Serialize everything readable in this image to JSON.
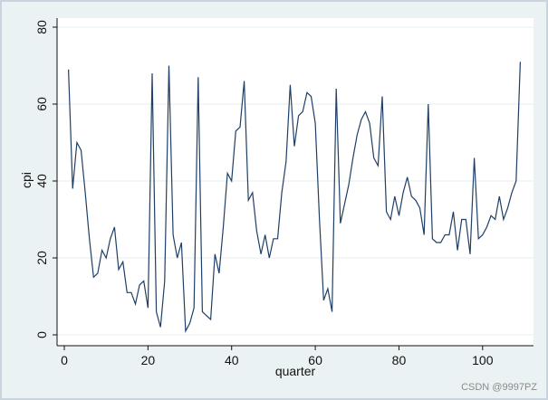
{
  "chart_data": {
    "type": "line",
    "xlabel": "quarter",
    "ylabel": "cpi",
    "xlim": [
      0,
      110
    ],
    "ylim": [
      0,
      80
    ],
    "x_ticks": [
      0,
      20,
      40,
      60,
      80,
      100
    ],
    "y_ticks": [
      0,
      20,
      40,
      60,
      80
    ],
    "grid": "horizontal",
    "line_color": "#1f3f66",
    "series": [
      {
        "x": [
          1,
          2,
          3,
          4,
          5,
          6,
          7,
          8,
          9,
          10,
          11,
          12,
          13,
          14,
          15,
          16,
          17,
          18,
          19,
          20,
          21,
          22,
          23,
          24,
          25,
          26,
          27,
          28,
          29,
          30,
          31,
          32,
          33,
          34,
          35,
          36,
          37,
          38,
          39,
          40,
          41,
          42,
          43,
          44,
          45,
          46,
          47,
          48,
          49,
          50,
          51,
          52,
          53,
          54,
          55,
          56,
          57,
          58,
          59,
          60,
          61,
          62,
          63,
          64,
          65,
          66,
          67,
          68,
          69,
          70,
          71,
          72,
          73,
          74,
          75,
          76,
          77,
          78,
          79,
          80,
          81,
          82,
          83,
          84,
          85,
          86,
          87,
          88,
          89,
          90,
          91,
          92,
          93,
          94,
          95,
          96,
          97,
          98,
          99,
          100,
          101,
          102,
          103,
          104,
          105,
          106,
          107,
          108,
          109
        ],
        "values": [
          69,
          38,
          50,
          48,
          37,
          25,
          15,
          16,
          22,
          20,
          25,
          28,
          17,
          19,
          11,
          11,
          8,
          13,
          14,
          7,
          68,
          6,
          2,
          14,
          70,
          26,
          20,
          24,
          1,
          3,
          7,
          67,
          6,
          5,
          4,
          21,
          16,
          28,
          42,
          40,
          53,
          54,
          66,
          35,
          37,
          27,
          21,
          26,
          20,
          25,
          25,
          37,
          45,
          65,
          49,
          57,
          58,
          63,
          62,
          55,
          30,
          9,
          12,
          6,
          64,
          29,
          34,
          39,
          46,
          52,
          56,
          58,
          55,
          46,
          44,
          62,
          32,
          30,
          36,
          31,
          37,
          41,
          36,
          35,
          33,
          26,
          60,
          25,
          24,
          24,
          26,
          26,
          32,
          22,
          30,
          30,
          21,
          46,
          25,
          26,
          28,
          31,
          30,
          36,
          30,
          33,
          37,
          40,
          71
        ]
      }
    ]
  },
  "watermark": "CSDN @9997PZ"
}
